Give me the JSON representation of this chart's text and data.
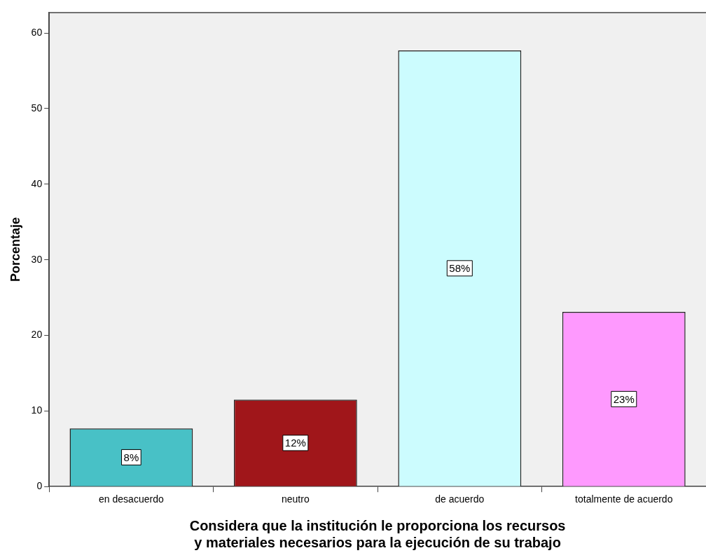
{
  "chart_data": {
    "type": "bar",
    "xlabel": "Considera que la institución le proporciona los recursos y materiales necesarios para la ejecución de su trabajo",
    "ylabel": "Porcentaje",
    "categories": [
      "en desacuerdo",
      "neutro",
      "de acuerdo",
      "totalmente de acuerdo"
    ],
    "values": [
      7.7,
      11.5,
      57.7,
      23.1
    ],
    "value_labels": [
      "8%",
      "12%",
      "58%",
      "23%"
    ],
    "colors": [
      "#48c1c6",
      "#a0161a",
      "#ccfcfe",
      "#fe99fe"
    ],
    "ylim": [
      0,
      62.7
    ],
    "yticks": [
      0,
      10,
      20,
      30,
      40,
      50,
      60
    ],
    "grid": false,
    "legend": false
  }
}
